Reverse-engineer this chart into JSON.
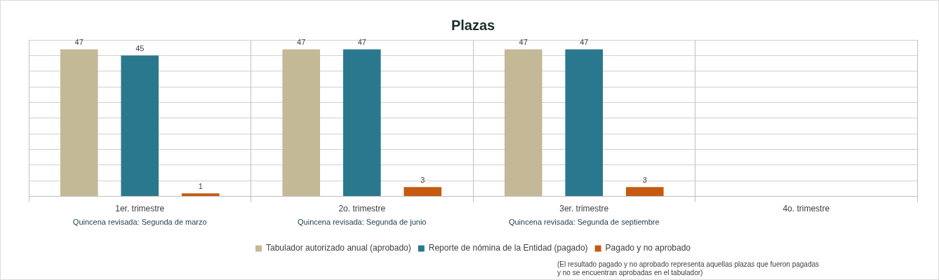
{
  "chart_data": {
    "type": "bar",
    "title": "Plazas",
    "categories": [
      "1er. trimestre",
      "2o. trimestre",
      "3er. trimestre",
      "4o. trimestre"
    ],
    "series": [
      {
        "name": "Tabulador autorizado anual (aprobado)",
        "color": "#c4b996",
        "values": [
          47,
          47,
          47,
          null
        ]
      },
      {
        "name": "Reporte de nómina de la Entidad (pagado)",
        "color": "#2a788e",
        "values": [
          45,
          47,
          47,
          null
        ]
      },
      {
        "name": "Pagado y no aprobado",
        "color": "#c55a11",
        "values": [
          1,
          3,
          3,
          null
        ]
      }
    ],
    "ylim": [
      0,
      50
    ],
    "yticks": [
      0,
      5,
      10,
      15,
      20,
      25,
      30,
      35,
      40,
      45,
      50
    ],
    "tick_labels": "x",
    "grid": true,
    "legend": "bottom",
    "data_labels": true,
    "annotations": [
      "Quincena revisada: Segunda de marzo",
      "Quincena revisada: Segunda de junio",
      "Quincena revisada: Segunda de septiembre",
      "(El resultado pagado y no aprobado representa aquellas plazas que fueron pagadas y no se encuentran aprobadas en el tabulador)"
    ]
  }
}
